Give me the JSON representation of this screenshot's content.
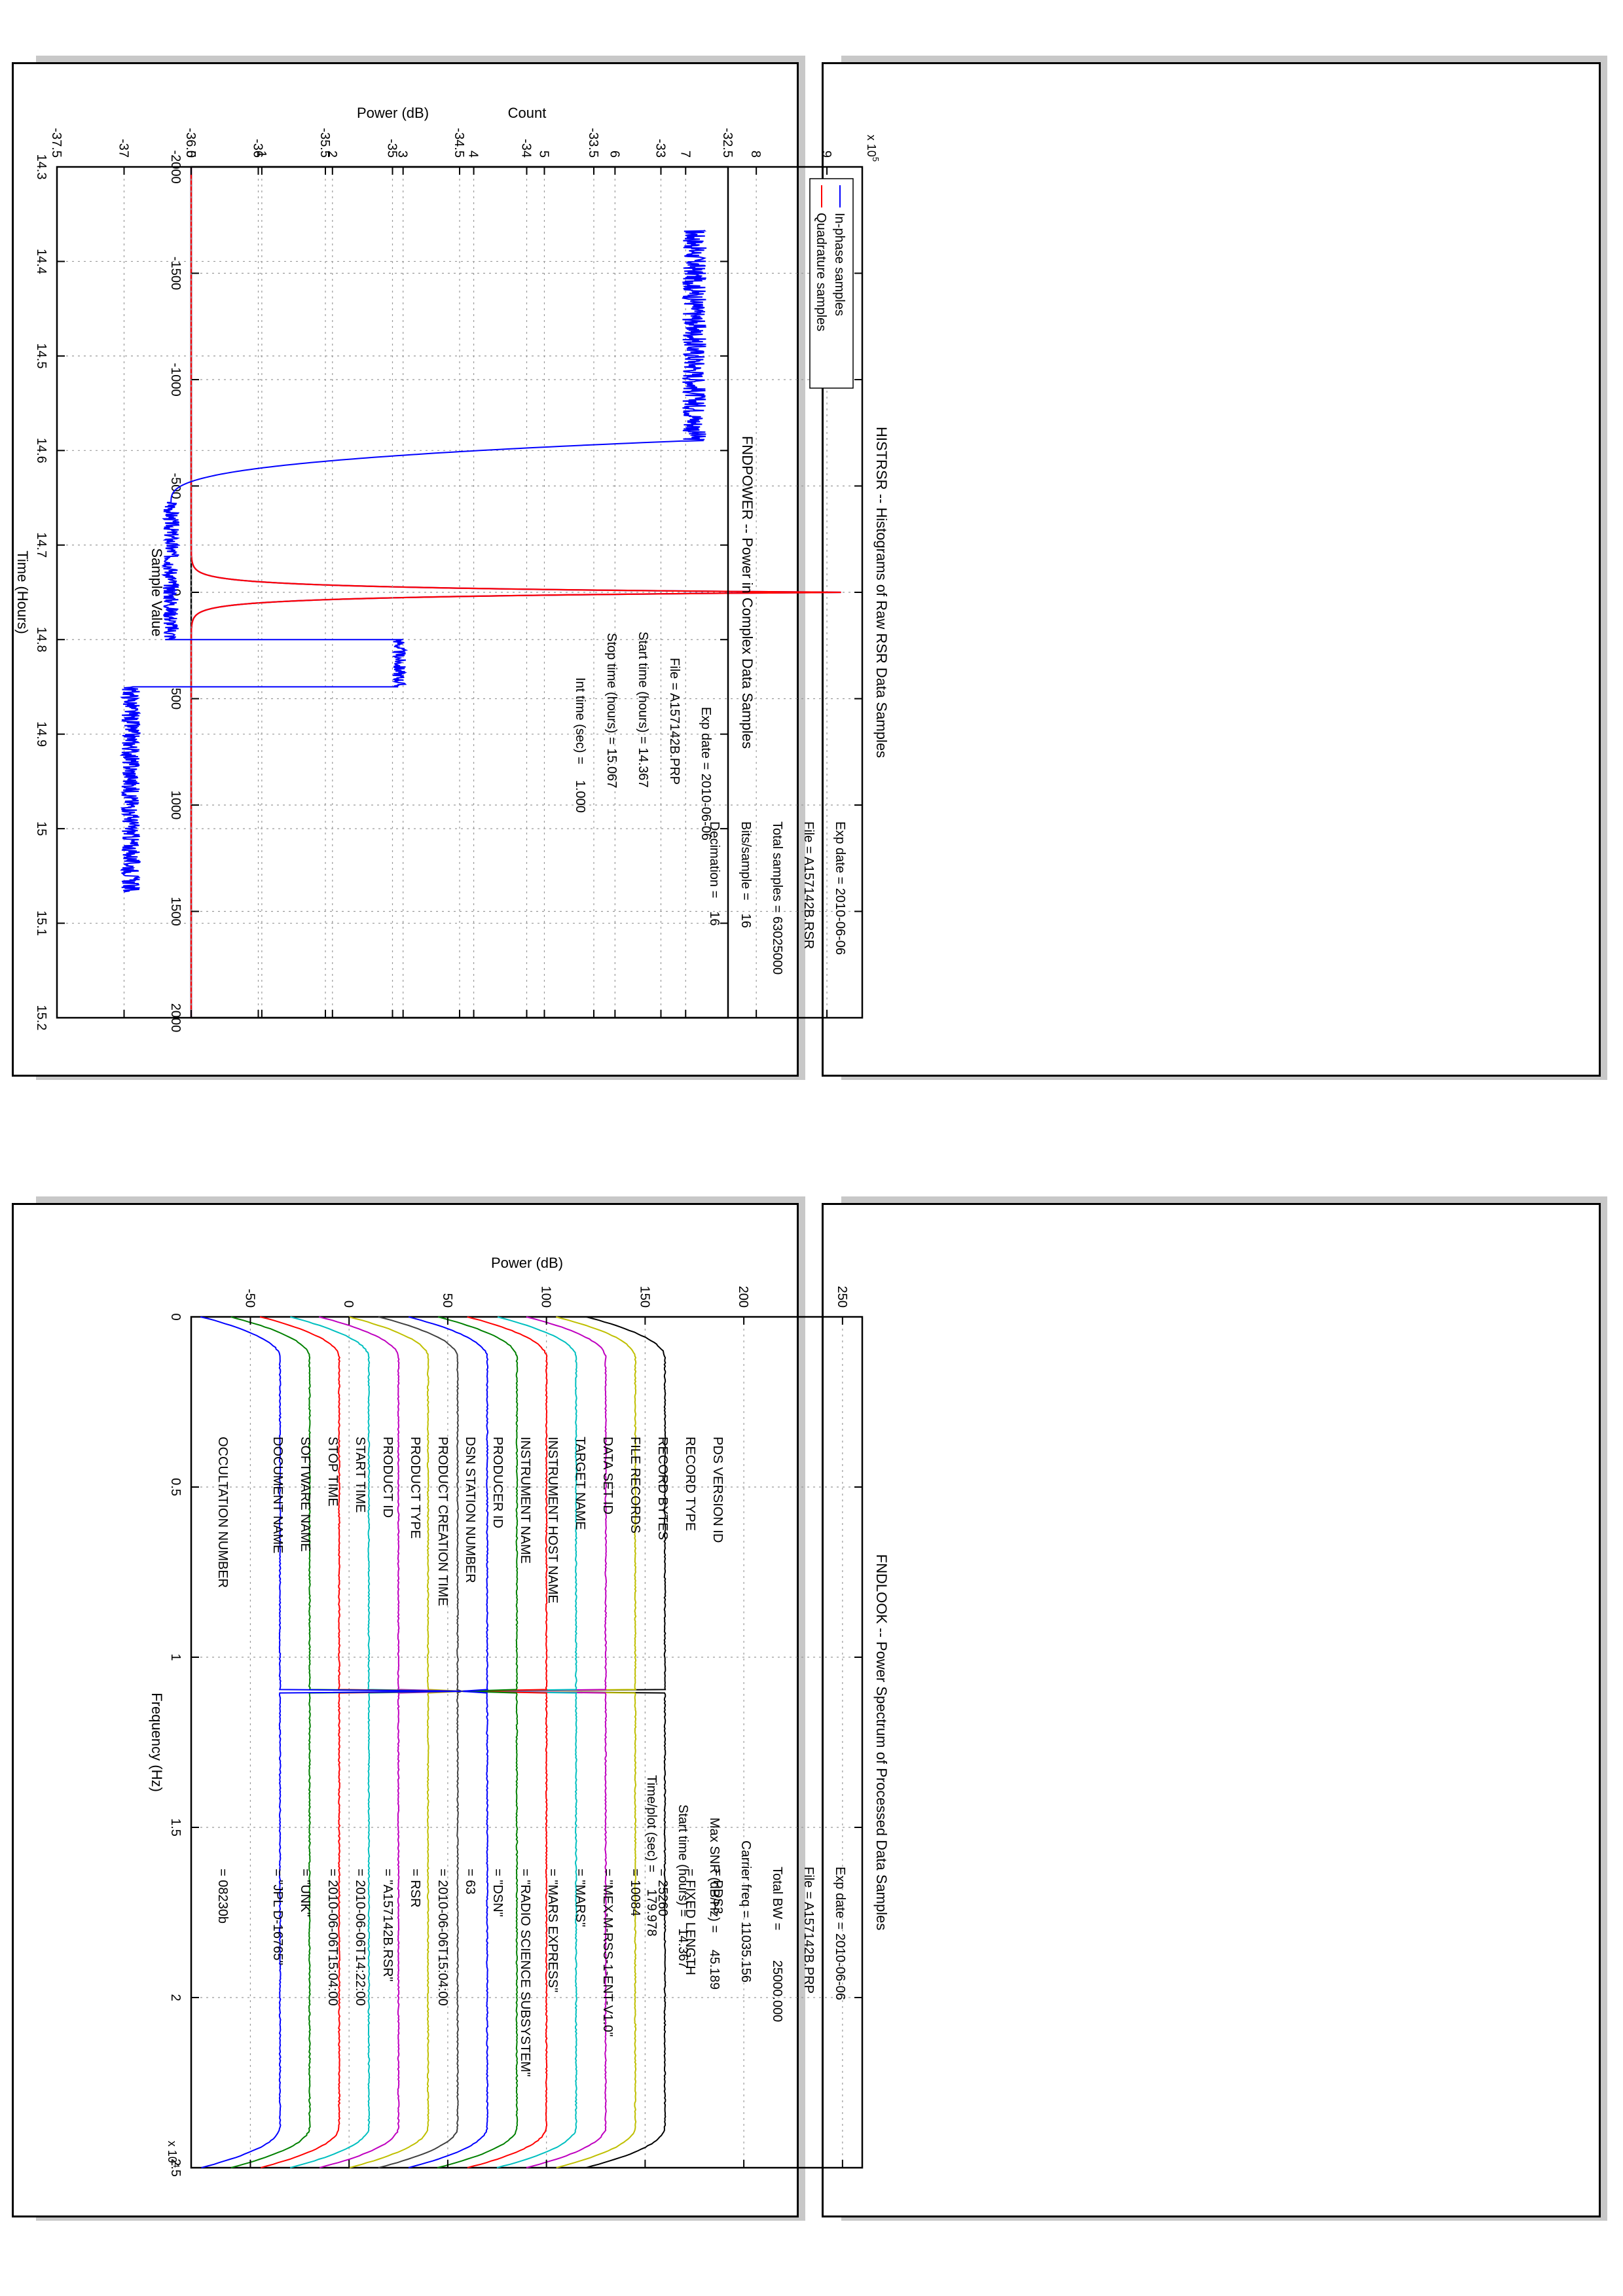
{
  "colors": {
    "inphase": "#0000ff",
    "quadrature": "#ff0000",
    "power": "#0000ff",
    "spectrum": [
      "#000000",
      "#bfbf00",
      "#bf00bf",
      "#00bfbf",
      "#ff0000",
      "#008000",
      "#0000ff",
      "#404040",
      "#bfbf00",
      "#bf00bf",
      "#00bfbf",
      "#ff0000",
      "#008000",
      "#0000ff"
    ]
  },
  "chart_data": [
    {
      "id": "histrsr",
      "type": "line",
      "title": "HISTRSR -- Histograms of Raw RSR Data Samples",
      "xlabel": "Sample Value",
      "ylabel": "Count",
      "xlim": [
        -2000,
        2000
      ],
      "ylim": [
        0,
        9.5
      ],
      "y_multiplier": "x 10",
      "y_exponent": "5",
      "xticks": [
        -2000,
        -1500,
        -1000,
        -500,
        0,
        500,
        1000,
        1500,
        2000
      ],
      "xtick_labels": [
        "-2000",
        "-1500",
        "-1000",
        "-500",
        "0",
        "500",
        "1000",
        "1500",
        "2000"
      ],
      "yticks": [
        0,
        1,
        2,
        3,
        4,
        5,
        6,
        7,
        8,
        9
      ],
      "ytick_labels": [
        "0",
        "1",
        "2",
        "3",
        "4",
        "5",
        "6",
        "7",
        "8",
        "9"
      ],
      "grid": true,
      "legend_position": "top-left",
      "series": [
        {
          "name": "In-phase samples",
          "peak": 9.2,
          "center": 0,
          "width": 22
        },
        {
          "name": "Quadrature samples",
          "peak": 9.2,
          "center": 0,
          "width": 22
        }
      ],
      "info": [
        {
          "label": "Exp date = ",
          "value": "2010-06-06"
        },
        {
          "label": "File = ",
          "value": "A157142B.RSR"
        },
        {
          "label": "Total samples = ",
          "value": "63025000"
        },
        {
          "label": "Bits/sample    =",
          "value": "16"
        },
        {
          "label": "Decimation     =",
          "value": "16"
        }
      ]
    },
    {
      "id": "fndpower",
      "type": "line",
      "title": "FNDPOWER -- Power in Complex Data Samples",
      "xlabel": "Time (Hours)",
      "ylabel": "Power (dB)",
      "xlim": [
        14.3,
        15.2
      ],
      "ylim": [
        -37.5,
        -32.5
      ],
      "xticks": [
        14.3,
        14.4,
        14.5,
        14.6,
        14.7,
        14.8,
        14.9,
        15.0,
        15.1,
        15.2
      ],
      "xtick_labels": [
        "14.3",
        "14.4",
        "14.5",
        "14.6",
        "14.7",
        "14.8",
        "14.9",
        "15",
        "15.1",
        "15.2"
      ],
      "yticks": [
        -37.5,
        -37,
        -36.5,
        -36,
        -35.5,
        -35,
        -34.5,
        -34,
        -33.5,
        -33,
        -32.5
      ],
      "ytick_labels": [
        "-37.5",
        "-37",
        "-36.5",
        "-36",
        "-35.5",
        "-35",
        "-34.5",
        "-34",
        "-33.5",
        "-33",
        "-32.5"
      ],
      "grid": true,
      "series": [
        {
          "segments": [
            {
              "t0": 14.367,
              "t1": 14.59,
              "level": -32.75,
              "noise": 0.09
            },
            {
              "t0": 14.59,
              "t1": 14.655,
              "from": -32.85,
              "to": -36.65
            },
            {
              "t0": 14.655,
              "t1": 14.8,
              "level": -36.65,
              "noise": 0.06
            },
            {
              "t0": 14.8,
              "t1": 14.85,
              "level": -34.95,
              "noise": 0.05
            },
            {
              "t0": 14.85,
              "t1": 15.067,
              "level": -36.95,
              "noise": 0.07
            }
          ]
        }
      ],
      "info": [
        {
          "label": "Exp date = ",
          "value": "2010-06-06"
        },
        {
          "label": "File = ",
          "value": "A157142B.PRP"
        },
        {
          "label": "Start time (hours) = ",
          "value": "14.367"
        },
        {
          "label": "Stop time (hours) = ",
          "value": "15.067"
        },
        {
          "label": "Int time (sec) =",
          "value": "1.000"
        }
      ]
    },
    {
      "id": "fndlook",
      "type": "line",
      "title": "FNDLOOK -- Power Spectrum of Processed Data Samples",
      "xlabel": "Frequency (Hz)",
      "ylabel": "Power (dB)",
      "xlim": [
        0,
        2.5
      ],
      "ylim": [
        -80,
        260
      ],
      "x_multiplier": "x 10",
      "x_exponent": "4",
      "xticks": [
        0,
        0.5,
        1,
        1.5,
        2,
        2.5
      ],
      "xtick_labels": [
        "0",
        "0.5",
        "1",
        "1.5",
        "2",
        "2.5"
      ],
      "yticks": [
        -50,
        0,
        50,
        100,
        150,
        200,
        250
      ],
      "ytick_labels": [
        "-50",
        "0",
        "50",
        "100",
        "150",
        "200",
        "250"
      ],
      "grid": true,
      "series": [
        {
          "offset": 160
        },
        {
          "offset": 145
        },
        {
          "offset": 130
        },
        {
          "offset": 115
        },
        {
          "offset": 100
        },
        {
          "offset": 85
        },
        {
          "offset": 70
        },
        {
          "offset": 55
        },
        {
          "offset": 40
        },
        {
          "offset": 25
        },
        {
          "offset": 10
        },
        {
          "offset": -5
        },
        {
          "offset": -20
        },
        {
          "offset": -35
        }
      ],
      "spike": {
        "x": 1.1,
        "peak": 57
      },
      "info": [
        {
          "label": "Exp date = ",
          "value": "2010-06-06"
        },
        {
          "label": "File = ",
          "value": "A157142B.PRP"
        },
        {
          "label": "Total BW =       ",
          "value": "25000.000"
        },
        {
          "label": "Carrier freq =   ",
          "value": "11035.156"
        },
        {
          "label": "Max SNR (dB/Hz) =   ",
          "value": "45.189"
        },
        {
          "label": "Start time (hours) =   ",
          "value": "14.367"
        },
        {
          "label": "Time/plot (sec) =     ",
          "value": "179.978"
        }
      ]
    }
  ],
  "label_table": {
    "rows": [
      {
        "key": "PDS VERSION ID",
        "value": "=  PDS3"
      },
      {
        "key": "RECORD TYPE",
        "value": "=  FIXED LENGTH"
      },
      {
        "key": "RECORD BYTES",
        "value": "=  25260"
      },
      {
        "key": "FILE RECORDS",
        "value": "=  10084"
      },
      {
        "key": "DATA SET ID",
        "value": "=  \"MEX-M-RSS-1-ENT-V1.0\""
      },
      {
        "key": "TARGET NAME",
        "value": "=  \"MARS\""
      },
      {
        "key": "INSTRUMENT HOST NAME",
        "value": "=  \"MARS EXPRESS\""
      },
      {
        "key": "INSTRUMENT NAME",
        "value": "=  \"RADIO SCIENCE SUBSYSTEM\""
      },
      {
        "key": "PRODUCER ID",
        "value": "=  \"DSN\""
      },
      {
        "key": "DSN STATION NUMBER",
        "value": "=  63"
      },
      {
        "key": "PRODUCT CREATION TIME",
        "value": "=  2010-06-06T15:04:00"
      },
      {
        "key": "PRODUCT TYPE",
        "value": "=  RSR"
      },
      {
        "key": "PRODUCT ID",
        "value": "=  \"A157142B.RSR\""
      },
      {
        "key": "START TIME",
        "value": "=  2010-06-06T14:22:00"
      },
      {
        "key": "STOP TIME",
        "value": "=  2010-06-06T15:04:00"
      },
      {
        "key": "SOFTWARE NAME",
        "value": "=  \"UNK\""
      },
      {
        "key": "DOCUMENT NAME",
        "value": "=  \"JPL D-16765\""
      },
      {
        "key": "",
        "value": ""
      },
      {
        "key": "OCCULTATION NUMBER",
        "value": "=  08230b"
      }
    ]
  }
}
